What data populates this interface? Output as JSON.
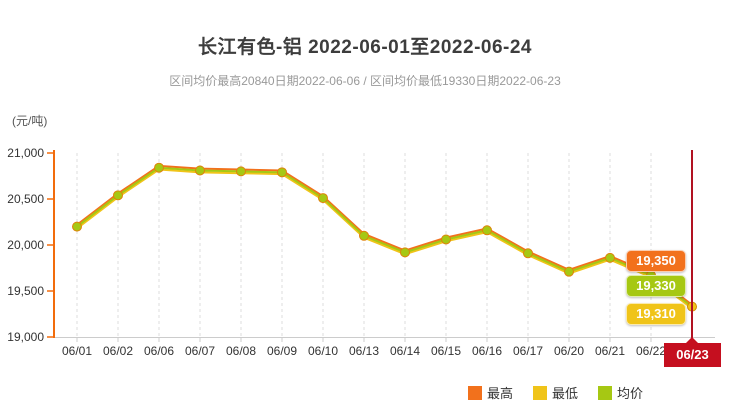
{
  "header": {
    "title": "长江有色-铝 2022-06-01至2022-06-24",
    "subtitle": "区间均价最高20840日期2022-06-06 / 区间均价最低19330日期2022-06-23"
  },
  "chart_data": {
    "type": "line",
    "title": "长江有色-铝 2022-06-01至2022-06-24",
    "unit_label": "(元/吨)",
    "xlabel": "",
    "ylabel": "元/吨",
    "ylim": [
      19000,
      21000
    ],
    "y_ticks": [
      "21,000",
      "20,500",
      "20,000",
      "19,500",
      "19,000"
    ],
    "y_tick_values": [
      21000,
      20500,
      20000,
      19500,
      19000
    ],
    "grid": "vertical-dashed",
    "legend_position": "bottom-right",
    "categories": [
      "06/01",
      "06/02",
      "06/06",
      "06/07",
      "06/08",
      "06/09",
      "06/10",
      "06/13",
      "06/14",
      "06/15",
      "06/16",
      "06/17",
      "06/20",
      "06/21",
      "06/22",
      "06/23"
    ],
    "series": [
      {
        "name": "最高",
        "color": "#f2711c",
        "values": [
          20220,
          20560,
          20860,
          20830,
          20820,
          20810,
          20530,
          20120,
          19940,
          20080,
          20180,
          19930,
          19730,
          19880,
          19690,
          19350
        ]
      },
      {
        "name": "最低",
        "color": "#f0c419",
        "values": [
          20180,
          20520,
          20820,
          20790,
          20780,
          20770,
          20490,
          20080,
          19900,
          20040,
          20140,
          19890,
          19690,
          19840,
          19650,
          19310
        ]
      },
      {
        "name": "均价",
        "color": "#a6c813",
        "values": [
          20200,
          20540,
          20840,
          20810,
          20800,
          20790,
          20510,
          20100,
          19920,
          20060,
          20160,
          19910,
          19710,
          19860,
          19670,
          19330
        ]
      }
    ],
    "legend": [
      {
        "label": "最高",
        "color": "#f2711c"
      },
      {
        "label": "最低",
        "color": "#f0c419"
      },
      {
        "label": "均价",
        "color": "#a6c813"
      }
    ],
    "end_labels": [
      {
        "key": "high",
        "text": "19,350",
        "color": "#f2711c"
      },
      {
        "key": "avg",
        "text": "19,330",
        "color": "#a6c813"
      },
      {
        "key": "low",
        "text": "19,310",
        "color": "#f0c419"
      }
    ],
    "highlight_category": "06/23",
    "highlight_line_color": "#b11222",
    "axis_color": "#f26c0c",
    "marker_color": "#a6c813",
    "last_marker_color": "#f0c419"
  }
}
